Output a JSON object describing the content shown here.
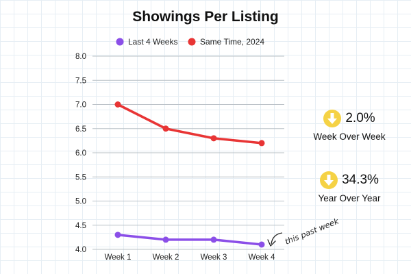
{
  "chart_data": {
    "type": "line",
    "title": "Showings Per Listing",
    "categories": [
      "Week 1",
      "Week 2",
      "Week 3",
      "Week 4"
    ],
    "yticks": [
      "4.0",
      "4.5",
      "5.0",
      "5.5",
      "6.0",
      "6.5",
      "7.0",
      "7.5",
      "8.0"
    ],
    "ylim": [
      4.0,
      8.0
    ],
    "grid": "horizontal",
    "legend_position": "top-center",
    "series": [
      {
        "name": "Last 4 Weeks",
        "color": "#8b4fe8",
        "values": [
          4.3,
          4.2,
          4.2,
          4.1
        ]
      },
      {
        "name": "Same Time, 2024",
        "color": "#e83535",
        "values": [
          7.0,
          6.5,
          6.3,
          6.2
        ]
      }
    ],
    "annotation": "this past week"
  },
  "stats": [
    {
      "value": "2.0%",
      "label": "Week Over Week",
      "icon": "down-arrow-icon",
      "color": "#f5d245"
    },
    {
      "value": "34.3%",
      "label": "Year Over Year",
      "icon": "down-arrow-icon",
      "color": "#f5d245"
    }
  ]
}
